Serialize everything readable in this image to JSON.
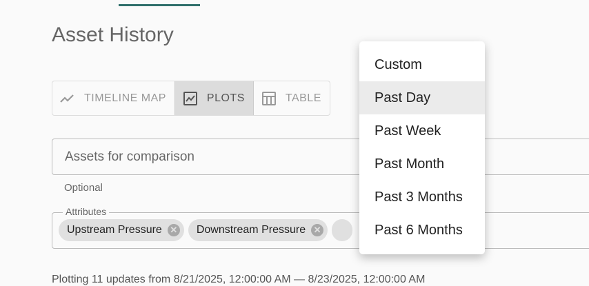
{
  "page_title": "Asset History",
  "view_toggle": [
    {
      "label": "TIMELINE MAP",
      "icon": "timeline-icon",
      "selected": false
    },
    {
      "label": "PLOTS",
      "icon": "chart-icon",
      "selected": true
    },
    {
      "label": "TABLE",
      "icon": "table-icon",
      "selected": false
    }
  ],
  "assets_field": {
    "placeholder": "Assets for comparison",
    "helper": "Optional"
  },
  "attributes_field": {
    "label": "Attributes",
    "chips": [
      "Upstream Pressure",
      "Downstream Pressure"
    ]
  },
  "status_text": "Plotting 11 updates from 8/21/2025, 12:00:00 AM — 8/23/2025, 12:00:00 AM",
  "time_range_menu": {
    "items": [
      "Custom",
      "Past Day",
      "Past Week",
      "Past Month",
      "Past 3 Months",
      "Past 6 Months"
    ],
    "highlighted": "Past Day"
  },
  "colors": {
    "accent": "#2f6f6b"
  }
}
